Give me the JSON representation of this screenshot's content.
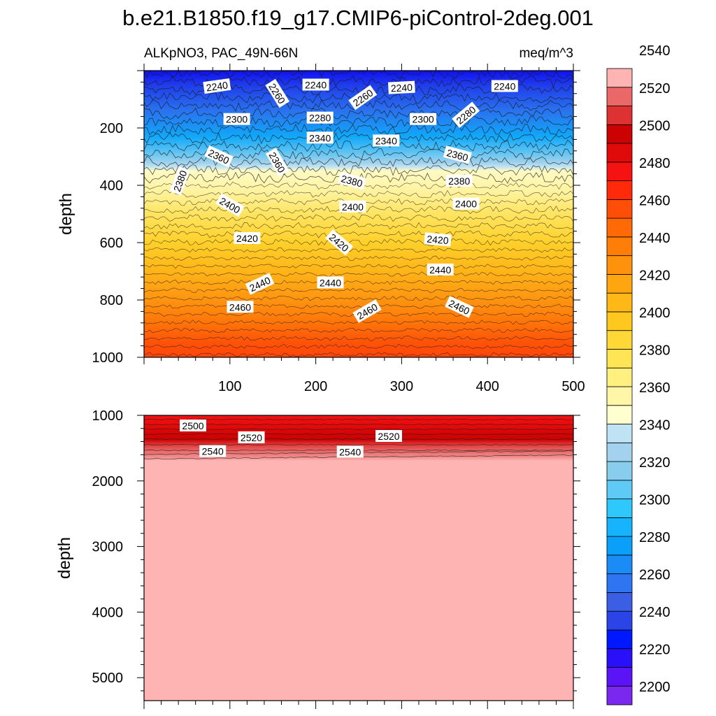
{
  "title": "b.e21.B1850.f19_g17.CMIP6-piControl-2deg.001",
  "subtitle_left": "ALKpNO3, PAC_49N-66N",
  "subtitle_right": "meq/m^3",
  "chart_data": [
    {
      "type": "heatmap",
      "panel": "upper",
      "ylabel": "depth",
      "xlim": [
        0,
        500
      ],
      "ylim": [
        1000,
        0
      ],
      "x_ticks": [
        100,
        200,
        300,
        400,
        500
      ],
      "y_ticks": [
        200,
        400,
        600,
        800,
        1000
      ],
      "contour_labels": [
        {
          "v": 2240,
          "x": 85,
          "y": 55,
          "rot": -8
        },
        {
          "v": 2260,
          "x": 155,
          "y": 80,
          "rot": 58
        },
        {
          "v": 2240,
          "x": 200,
          "y": 50,
          "rot": 0
        },
        {
          "v": 2260,
          "x": 255,
          "y": 95,
          "rot": -35
        },
        {
          "v": 2240,
          "x": 300,
          "y": 60,
          "rot": -3
        },
        {
          "v": 2240,
          "x": 420,
          "y": 55,
          "rot": 0
        },
        {
          "v": 2300,
          "x": 108,
          "y": 170,
          "rot": 0
        },
        {
          "v": 2280,
          "x": 205,
          "y": 165,
          "rot": 0
        },
        {
          "v": 2300,
          "x": 325,
          "y": 170,
          "rot": 0
        },
        {
          "v": 2280,
          "x": 375,
          "y": 155,
          "rot": -40
        },
        {
          "v": 2340,
          "x": 205,
          "y": 235,
          "rot": 0
        },
        {
          "v": 2340,
          "x": 282,
          "y": 245,
          "rot": 0
        },
        {
          "v": 2360,
          "x": 87,
          "y": 300,
          "rot": 25
        },
        {
          "v": 2360,
          "x": 155,
          "y": 320,
          "rot": 60
        },
        {
          "v": 2360,
          "x": 365,
          "y": 295,
          "rot": 15
        },
        {
          "v": 2380,
          "x": 42,
          "y": 385,
          "rot": -70
        },
        {
          "v": 2380,
          "x": 242,
          "y": 385,
          "rot": 15
        },
        {
          "v": 2380,
          "x": 367,
          "y": 385,
          "rot": 0
        },
        {
          "v": 2400,
          "x": 100,
          "y": 470,
          "rot": 30
        },
        {
          "v": 2400,
          "x": 243,
          "y": 475,
          "rot": 0
        },
        {
          "v": 2400,
          "x": 375,
          "y": 465,
          "rot": 0
        },
        {
          "v": 2420,
          "x": 120,
          "y": 585,
          "rot": 0
        },
        {
          "v": 2420,
          "x": 227,
          "y": 600,
          "rot": 40
        },
        {
          "v": 2420,
          "x": 342,
          "y": 590,
          "rot": 5
        },
        {
          "v": 2440,
          "x": 135,
          "y": 745,
          "rot": -25
        },
        {
          "v": 2440,
          "x": 217,
          "y": 740,
          "rot": 0
        },
        {
          "v": 2440,
          "x": 345,
          "y": 695,
          "rot": 0
        },
        {
          "v": 2460,
          "x": 112,
          "y": 825,
          "rot": 0
        },
        {
          "v": 2460,
          "x": 260,
          "y": 840,
          "rot": -30
        },
        {
          "v": 2460,
          "x": 367,
          "y": 825,
          "rot": 25
        }
      ]
    },
    {
      "type": "heatmap",
      "panel": "lower",
      "ylabel": "depth",
      "xlim": [
        0,
        500
      ],
      "ylim": [
        5350,
        1000
      ],
      "y_ticks": [
        1000,
        2000,
        3000,
        4000,
        5000
      ],
      "contour_labels": [
        {
          "v": 2500,
          "x": 57,
          "y": 1160,
          "rot": 0
        },
        {
          "v": 2520,
          "x": 125,
          "y": 1340,
          "rot": 0
        },
        {
          "v": 2520,
          "x": 285,
          "y": 1320,
          "rot": 0
        },
        {
          "v": 2540,
          "x": 80,
          "y": 1550,
          "rot": 0
        },
        {
          "v": 2540,
          "x": 240,
          "y": 1560,
          "rot": 0
        }
      ]
    }
  ],
  "colorbar": {
    "labels": [
      2540,
      2520,
      2500,
      2480,
      2460,
      2440,
      2420,
      2400,
      2380,
      2360,
      2340,
      2320,
      2300,
      2280,
      2260,
      2240,
      2220,
      2200
    ],
    "colors": [
      "#7a28f0",
      "#5a14f5",
      "#2a10f8",
      "#0018ff",
      "#2a44e8",
      "#3a5fe4",
      "#2f74f0",
      "#1b8cf6",
      "#0aa0fa",
      "#16b4fc",
      "#2ec8fc",
      "#5fcaf6",
      "#88cdee",
      "#a2d2ee",
      "#bfe3f2",
      "#ffffd0",
      "#fff6a8",
      "#fff080",
      "#ffe455",
      "#ffd736",
      "#ffc81e",
      "#ffb816",
      "#ffa510",
      "#ff920c",
      "#ff7e08",
      "#ff6a06",
      "#ff4e08",
      "#ff2a0a",
      "#f41212",
      "#e00a0a",
      "#cc0202",
      "#de3232",
      "#ea6868",
      "#ffb4b4"
    ]
  }
}
